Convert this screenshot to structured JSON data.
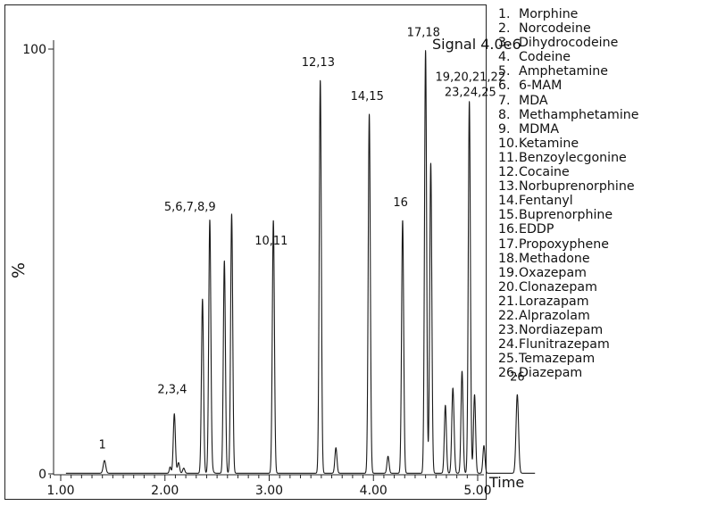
{
  "chart_data": {
    "type": "line",
    "title": "",
    "xlabel": "Time",
    "ylabel": "%",
    "xlim": [
      0.85,
      5.6
    ],
    "ylim": [
      0,
      100
    ],
    "x_ticks": [
      1.0,
      2.0,
      3.0,
      4.0,
      5.0
    ],
    "x_tick_labels": [
      "1.00",
      "2.00",
      "3.00",
      "4.00",
      "5.00"
    ],
    "y_tick_labels": [
      {
        "value": 0,
        "label": "0"
      },
      {
        "value": 100,
        "label": "100"
      }
    ],
    "annotation": "Signal 4.0e6",
    "line_color": "#1a1a1a",
    "grid": false,
    "legend_position": "right",
    "peaks": [
      {
        "rt": 1.42,
        "height": 3.0,
        "width": 0.012
      },
      {
        "rt": 2.05,
        "height": 1.5,
        "width": 0.008
      },
      {
        "rt": 2.09,
        "height": 14.0,
        "width": 0.01
      },
      {
        "rt": 2.13,
        "height": 2.5,
        "width": 0.01
      },
      {
        "rt": 2.18,
        "height": 1.2,
        "width": 0.01
      },
      {
        "rt": 2.36,
        "height": 41.0,
        "width": 0.01
      },
      {
        "rt": 2.43,
        "height": 58.0,
        "width": 0.01
      },
      {
        "rt": 2.44,
        "height": 2.0,
        "width": 0.015
      },
      {
        "rt": 2.57,
        "height": 50.0,
        "width": 0.01
      },
      {
        "rt": 2.64,
        "height": 61.0,
        "width": 0.01
      },
      {
        "rt": 3.04,
        "height": 49.5,
        "width": 0.01
      },
      {
        "rt": 3.04,
        "height": 10.0,
        "width": 0.01
      },
      {
        "rt": 3.49,
        "height": 92.5,
        "width": 0.01
      },
      {
        "rt": 3.64,
        "height": 6.0,
        "width": 0.01
      },
      {
        "rt": 3.96,
        "height": 84.5,
        "width": 0.01
      },
      {
        "rt": 4.14,
        "height": 4.0,
        "width": 0.01
      },
      {
        "rt": 4.28,
        "height": 59.5,
        "width": 0.01
      },
      {
        "rt": 4.5,
        "height": 99.5,
        "width": 0.01
      },
      {
        "rt": 4.55,
        "height": 73.0,
        "width": 0.01
      },
      {
        "rt": 4.69,
        "height": 16.0,
        "width": 0.01
      },
      {
        "rt": 4.76,
        "height": 16.0,
        "width": 0.01
      },
      {
        "rt": 4.77,
        "height": 6.0,
        "width": 0.01
      },
      {
        "rt": 4.85,
        "height": 24.0,
        "width": 0.01
      },
      {
        "rt": 4.92,
        "height": 87.5,
        "width": 0.01
      },
      {
        "rt": 4.97,
        "height": 18.5,
        "width": 0.01
      },
      {
        "rt": 5.06,
        "height": 6.5,
        "width": 0.01
      },
      {
        "rt": 5.38,
        "height": 18.5,
        "width": 0.012
      }
    ],
    "peak_labels": [
      {
        "text": "1",
        "x": 1.4,
        "y": 6
      },
      {
        "text": "2,3,4",
        "x": 2.07,
        "y": 19
      },
      {
        "text": "5,6,7,8,9",
        "x": 2.24,
        "y": 62
      },
      {
        "text": "10,11",
        "x": 3.02,
        "y": 54
      },
      {
        "text": "12,13",
        "x": 3.47,
        "y": 96
      },
      {
        "text": "14,15",
        "x": 3.94,
        "y": 88
      },
      {
        "text": "16",
        "x": 4.26,
        "y": 63
      },
      {
        "text": "17,18",
        "x": 4.48,
        "y": 103
      },
      {
        "text": "19,20,21,22",
        "x": 4.93,
        "y": 92.5
      },
      {
        "text": "23,24,25",
        "x": 4.93,
        "y": 89
      },
      {
        "text": "26",
        "x": 5.38,
        "y": 22
      }
    ],
    "legend": [
      {
        "num": "1.",
        "name": "Morphine"
      },
      {
        "num": "2.",
        "name": "Norcodeine"
      },
      {
        "num": "3.",
        "name": "Dihydrocodeine"
      },
      {
        "num": "4.",
        "name": "Codeine"
      },
      {
        "num": "5.",
        "name": "Amphetamine"
      },
      {
        "num": "6.",
        "name": "6-MAM"
      },
      {
        "num": "7.",
        "name": "MDA"
      },
      {
        "num": "8.",
        "name": "Methamphetamine"
      },
      {
        "num": "9.",
        "name": "MDMA"
      },
      {
        "num": "10.",
        "name": "Ketamine"
      },
      {
        "num": "11.",
        "name": "Benzoylecgonine"
      },
      {
        "num": "12.",
        "name": "Cocaine"
      },
      {
        "num": "13.",
        "name": "Norbuprenorphine"
      },
      {
        "num": "14.",
        "name": "Fentanyl"
      },
      {
        "num": "15.",
        "name": "Buprenorphine"
      },
      {
        "num": "16.",
        "name": "EDDP"
      },
      {
        "num": "17.",
        "name": "Propoxyphene"
      },
      {
        "num": "18.",
        "name": "Methadone"
      },
      {
        "num": "19.",
        "name": "Oxazepam"
      },
      {
        "num": "20.",
        "name": "Clonazepam"
      },
      {
        "num": "21.",
        "name": "Lorazapam"
      },
      {
        "num": "22.",
        "name": "Alprazolam"
      },
      {
        "num": "23.",
        "name": "Nordiazepam"
      },
      {
        "num": "24.",
        "name": "Flunitrazepam"
      },
      {
        "num": "25.",
        "name": "Temazepam"
      },
      {
        "num": "26.",
        "name": "Diazepam"
      }
    ]
  }
}
